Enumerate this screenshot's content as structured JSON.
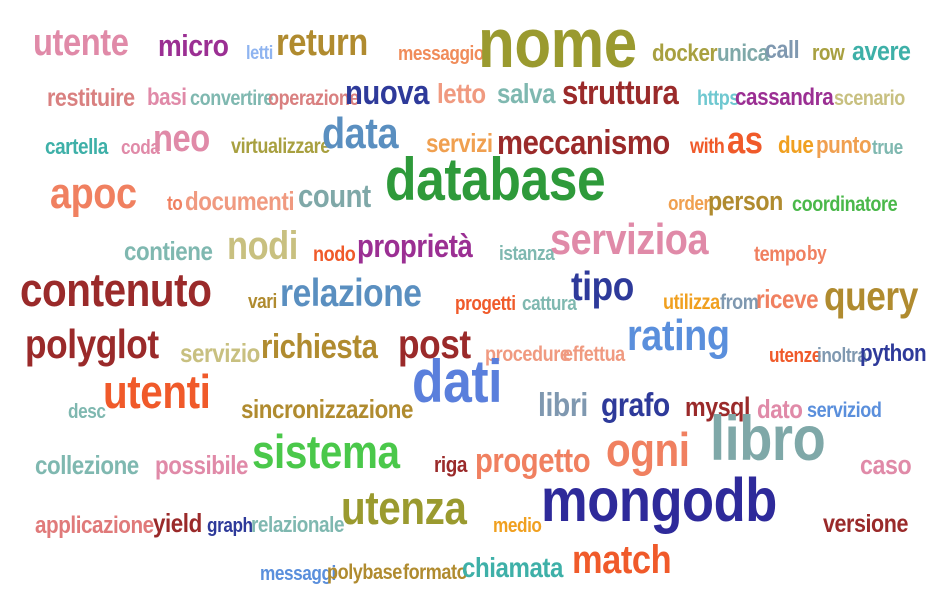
{
  "words": [
    {
      "text": "utente",
      "color": "#e08aa8",
      "weight": 0.45
    },
    {
      "text": "micro",
      "color": "#9b2f93",
      "weight": 0.32
    },
    {
      "text": "letti",
      "color": "#8fb4f0",
      "weight": 0.12
    },
    {
      "text": "return",
      "color": "#b08b2f",
      "weight": 0.45
    },
    {
      "text": "messaggio",
      "color": "#f08c5a",
      "weight": 0.14
    },
    {
      "text": "nome",
      "color": "#9a9a2f",
      "weight": 1.0
    },
    {
      "text": "docker",
      "color": "#a8a040",
      "weight": 0.2
    },
    {
      "text": "unica",
      "color": "#7fa8a8",
      "weight": 0.2
    },
    {
      "text": "call",
      "color": "#7f98b0",
      "weight": 0.22
    },
    {
      "text": "row",
      "color": "#a8a040",
      "weight": 0.18
    },
    {
      "text": "avere",
      "color": "#3eb0a8",
      "weight": 0.26
    },
    {
      "text": "restituire",
      "color": "#d98080",
      "weight": 0.22
    },
    {
      "text": "basi",
      "color": "#e08aa8",
      "weight": 0.2
    },
    {
      "text": "convertire",
      "color": "#7fb8b0",
      "weight": 0.15
    },
    {
      "text": "operazione",
      "color": "#d98080",
      "weight": 0.15
    },
    {
      "text": "nuova",
      "color": "#2e3a9a",
      "weight": 0.38
    },
    {
      "text": "letto",
      "color": "#f09a80",
      "weight": 0.28
    },
    {
      "text": "salva",
      "color": "#7fb8b0",
      "weight": 0.28
    },
    {
      "text": "struttura",
      "color": "#9a2a2a",
      "weight": 0.38
    },
    {
      "text": "https",
      "color": "#6fc8d0",
      "weight": 0.15
    },
    {
      "text": "cassandra",
      "color": "#9b2f93",
      "weight": 0.2
    },
    {
      "text": "scenario",
      "color": "#c8c080",
      "weight": 0.16
    },
    {
      "text": "cartella",
      "color": "#3eb0a8",
      "weight": 0.18
    },
    {
      "text": "coda",
      "color": "#e08aa8",
      "weight": 0.13
    },
    {
      "text": "neo",
      "color": "#e08aa8",
      "weight": 0.45
    },
    {
      "text": "virtualizzare",
      "color": "#a8a040",
      "weight": 0.16
    },
    {
      "text": "data",
      "color": "#5a8fc0",
      "weight": 0.55
    },
    {
      "text": "servizi",
      "color": "#f0a050",
      "weight": 0.24
    },
    {
      "text": "meccanismo",
      "color": "#9a2a2a",
      "weight": 0.38
    },
    {
      "text": "with",
      "color": "#f05a2a",
      "weight": 0.16
    },
    {
      "text": "as",
      "color": "#f05a2a",
      "weight": 0.44
    },
    {
      "text": "due",
      "color": "#f0a020",
      "weight": 0.2
    },
    {
      "text": "punto",
      "color": "#f0a050",
      "weight": 0.2
    },
    {
      "text": "true",
      "color": "#7fb8b0",
      "weight": 0.14
    },
    {
      "text": "apoc",
      "color": "#f08060",
      "weight": 0.55
    },
    {
      "text": "to",
      "color": "#f08060",
      "weight": 0.13
    },
    {
      "text": "documenti",
      "color": "#f09a80",
      "weight": 0.24
    },
    {
      "text": "count",
      "color": "#7fa8a8",
      "weight": 0.34
    },
    {
      "text": "database",
      "color": "#2e9a3a",
      "weight": 0.82
    },
    {
      "text": "order",
      "color": "#f0a050",
      "weight": 0.14
    },
    {
      "text": "person",
      "color": "#b08b2f",
      "weight": 0.26
    },
    {
      "text": "coordinatore",
      "color": "#4ab84a",
      "weight": 0.16
    },
    {
      "text": "contiene",
      "color": "#7fb8b0",
      "weight": 0.24
    },
    {
      "text": "nodi",
      "color": "#c8c080",
      "weight": 0.48
    },
    {
      "text": "nodo",
      "color": "#f05a2a",
      "weight": 0.16
    },
    {
      "text": "proprietà",
      "color": "#9b2f93",
      "weight": 0.34
    },
    {
      "text": "istanza",
      "color": "#7fb8b0",
      "weight": 0.14
    },
    {
      "text": "servizioa",
      "color": "#e08aa8",
      "weight": 0.55
    },
    {
      "text": "tempo",
      "color": "#f08060",
      "weight": 0.16
    },
    {
      "text": "by",
      "color": "#f08060",
      "weight": 0.14
    },
    {
      "text": "contenuto",
      "color": "#9a2a2a",
      "weight": 0.6
    },
    {
      "text": "vari",
      "color": "#b08b2f",
      "weight": 0.13
    },
    {
      "text": "relazione",
      "color": "#5a8fc0",
      "weight": 0.46
    },
    {
      "text": "progetti",
      "color": "#f05a2a",
      "weight": 0.14
    },
    {
      "text": "cattura",
      "color": "#7fb8b0",
      "weight": 0.14
    },
    {
      "text": "tipo",
      "color": "#2e3a9a",
      "weight": 0.5
    },
    {
      "text": "utilizza",
      "color": "#f0a020",
      "weight": 0.15
    },
    {
      "text": "from",
      "color": "#7f98b0",
      "weight": 0.16
    },
    {
      "text": "riceve",
      "color": "#f08060",
      "weight": 0.24
    },
    {
      "text": "query",
      "color": "#b08b2f",
      "weight": 0.5
    },
    {
      "text": "polyglot",
      "color": "#9a2a2a",
      "weight": 0.5
    },
    {
      "text": "servizio",
      "color": "#c8c080",
      "weight": 0.24
    },
    {
      "text": "richiesta",
      "color": "#b08b2f",
      "weight": 0.38
    },
    {
      "text": "post",
      "color": "#9a2a2a",
      "weight": 0.5
    },
    {
      "text": "procedure",
      "color": "#f09a80",
      "weight": 0.16
    },
    {
      "text": "effettua",
      "color": "#f09a80",
      "weight": 0.16
    },
    {
      "text": "rating",
      "color": "#5a8fdc",
      "weight": 0.55
    },
    {
      "text": "utenze",
      "color": "#f05a2a",
      "weight": 0.14
    },
    {
      "text": "inoltra",
      "color": "#7f98b0",
      "weight": 0.14
    },
    {
      "text": "python",
      "color": "#2e3a9a",
      "weight": 0.2
    },
    {
      "text": "desc",
      "color": "#7fb8b0",
      "weight": 0.13
    },
    {
      "text": "utenti",
      "color": "#f05a2a",
      "weight": 0.6
    },
    {
      "text": "sincronizzazione",
      "color": "#b08b2f",
      "weight": 0.24
    },
    {
      "text": "dati",
      "color": "#5a7fdc",
      "weight": 0.82
    },
    {
      "text": "libri",
      "color": "#7f98b0",
      "weight": 0.36
    },
    {
      "text": "grafo",
      "color": "#2e3a9a",
      "weight": 0.36
    },
    {
      "text": "mysql",
      "color": "#9a2a2a",
      "weight": 0.26
    },
    {
      "text": "dato",
      "color": "#e08aa8",
      "weight": 0.24
    },
    {
      "text": "serviziod",
      "color": "#5a8fdc",
      "weight": 0.16
    },
    {
      "text": "collezione",
      "color": "#7fb8b0",
      "weight": 0.24
    },
    {
      "text": "possibile",
      "color": "#e08aa8",
      "weight": 0.24
    },
    {
      "text": "sistema",
      "color": "#4ac84a",
      "weight": 0.6
    },
    {
      "text": "riga",
      "color": "#9a2a2a",
      "weight": 0.18
    },
    {
      "text": "progetto",
      "color": "#f08060",
      "weight": 0.38
    },
    {
      "text": "ogni",
      "color": "#f08060",
      "weight": 0.6
    },
    {
      "text": "libro",
      "color": "#7fa8a8",
      "weight": 0.88
    },
    {
      "text": "caso",
      "color": "#e08aa8",
      "weight": 0.26
    },
    {
      "text": "applicazione",
      "color": "#e07a7a",
      "weight": 0.2
    },
    {
      "text": "yield",
      "color": "#9a2a2a",
      "weight": 0.24
    },
    {
      "text": "graph",
      "color": "#2e3a9a",
      "weight": 0.14
    },
    {
      "text": "relazionale",
      "color": "#7fb8b0",
      "weight": 0.17
    },
    {
      "text": "utenza",
      "color": "#9a9a2f",
      "weight": 0.6
    },
    {
      "text": "medio",
      "color": "#f0a020",
      "weight": 0.14
    },
    {
      "text": "mongodb",
      "color": "#2e2a9a",
      "weight": 0.85
    },
    {
      "text": "versione",
      "color": "#9a2a2a",
      "weight": 0.22
    },
    {
      "text": "messaggi",
      "color": "#5a8fdc",
      "weight": 0.14
    },
    {
      "text": "polybase",
      "color": "#b08b2f",
      "weight": 0.16
    },
    {
      "text": "formato",
      "color": "#b08b2f",
      "weight": 0.16
    },
    {
      "text": "chiamata",
      "color": "#3eb0a8",
      "weight": 0.28
    },
    {
      "text": "match",
      "color": "#f05a2a",
      "weight": 0.48
    }
  ]
}
